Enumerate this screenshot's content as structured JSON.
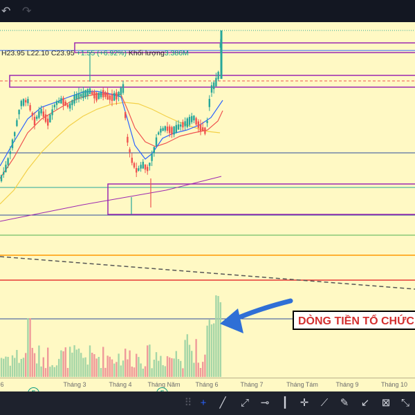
{
  "toolbar_top": {
    "undo_icon": "undo-icon",
    "redo_icon": "redo-icon"
  },
  "legend": {
    "high": "H23.95",
    "low": "L22.10",
    "close": "C23.95",
    "change": "+1.55 (+6.92%)",
    "volume_label": "Khối lượng",
    "volume_value": "3.386M"
  },
  "annotation": {
    "text": "DÒNG TIỀN TỔ CHỨC"
  },
  "time_axis": {
    "labels": [
      "6",
      "Tháng 3",
      "Tháng 4",
      "Tháng Năm",
      "Tháng 6",
      "Tháng 7",
      "Tháng Tám",
      "Tháng 9",
      "Tháng 10"
    ]
  },
  "events": [
    "F",
    "F"
  ],
  "drawing_tools": [
    "grip-icon",
    "crosshair-icon",
    "trend-line-icon",
    "polyline-icon",
    "horizontal-line-icon",
    "candle-icon",
    "cross-icon",
    "ruler-icon",
    "brush-icon",
    "measure-icon",
    "zoom-icon",
    "arrows-icon"
  ],
  "colors": {
    "background": "#fff9c4",
    "up_candle": "#26a69a",
    "down_candle": "#ef5350",
    "zone_border": "#9c27b0",
    "annotation_text": "#d32f2f",
    "arrow": "#2f6fd6"
  },
  "chart_data": {
    "type": "candlestick",
    "symbol": "",
    "last": {
      "high": 23.95,
      "low": 22.1,
      "close": 23.95,
      "change": 1.55,
      "change_pct": 6.92,
      "volume": "3.386M"
    },
    "x_axis_ticks": [
      "6",
      "Tháng 3",
      "Tháng 4",
      "Tháng Năm",
      "Tháng 6",
      "Tháng 7",
      "Tháng Tám",
      "Tháng 9",
      "Tháng 10"
    ],
    "moving_averages": [
      "fast",
      "medium",
      "slow",
      "long"
    ],
    "annotation": "DÒNG TIỀN TỔ CHỨC"
  }
}
